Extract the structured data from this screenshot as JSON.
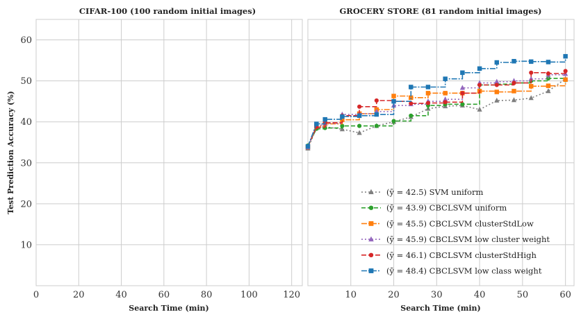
{
  "chart_data": [
    {
      "type": "line",
      "title": "CIFAR-100 (100 random initial images)",
      "xlabel": "Search Time (min)",
      "ylabel": "Test Prediction Accuracy (%)",
      "xlim": [
        0,
        125
      ],
      "ylim": [
        0,
        65
      ],
      "xticks": [
        0,
        20,
        40,
        60,
        80,
        100,
        120
      ],
      "yticks": [
        10,
        20,
        30,
        40,
        50,
        60
      ],
      "grid": true,
      "series": []
    },
    {
      "type": "line",
      "title": "GROCERY STORE (81 random initial images)",
      "xlabel": "Search Time (min)",
      "ylabel": "",
      "xlim": [
        0,
        62
      ],
      "ylim": [
        0,
        65
      ],
      "xticks": [
        10,
        20,
        30,
        40,
        50,
        60
      ],
      "yticks": [
        10,
        20,
        30,
        40,
        50,
        60
      ],
      "grid": true,
      "legend_position": "lower-right",
      "series": [
        {
          "name": "(ȳ = 42.5) SVM uniform",
          "color": "#7f7f7f",
          "dash": "2,3",
          "marker": "triangle",
          "step": false,
          "x": [
            0,
            2,
            4,
            8,
            12,
            16,
            20,
            24,
            28,
            32,
            36,
            40,
            44,
            48,
            52,
            56,
            60
          ],
          "y": [
            33.5,
            38.5,
            38.8,
            38.2,
            37.3,
            39.0,
            40.0,
            41.2,
            43.2,
            43.8,
            44.0,
            43.0,
            45.2,
            45.3,
            45.8,
            47.5,
            50.5
          ]
        },
        {
          "name": "(ȳ = 43.9) CBCLSVM uniform",
          "color": "#2ca02c",
          "dash": "6,3",
          "marker": "circle",
          "step": true,
          "x": [
            0,
            2,
            4,
            8,
            12,
            16,
            20,
            24,
            28,
            32,
            36,
            40,
            44,
            48,
            52,
            56,
            60
          ],
          "y": [
            34.2,
            38.3,
            38.5,
            39.0,
            39.0,
            39.0,
            40.2,
            41.5,
            44.0,
            44.3,
            44.3,
            49.0,
            49.2,
            49.5,
            50.0,
            50.6,
            50.2
          ]
        },
        {
          "name": "(ȳ = 45.5) CBCLSVM clusterStdLow",
          "color": "#ff7f0e",
          "dash": "8,2,2,2",
          "marker": "square",
          "step": true,
          "x": [
            0,
            2,
            4,
            8,
            12,
            16,
            20,
            24,
            28,
            32,
            36,
            40,
            44,
            48,
            52,
            56,
            60
          ],
          "y": [
            33.8,
            39.0,
            39.5,
            40.5,
            42.0,
            43.0,
            46.3,
            45.9,
            47.0,
            47.0,
            47.0,
            47.5,
            47.3,
            47.5,
            48.7,
            48.8,
            50.3
          ]
        },
        {
          "name": "(ȳ = 45.9) CBCLSVM low cluster weight",
          "color": "#9467bd",
          "dash": "2,3",
          "marker": "triangle",
          "step": true,
          "x": [
            0,
            2,
            4,
            8,
            12,
            16,
            20,
            24,
            28,
            32,
            36,
            40,
            44,
            48,
            52,
            56,
            60
          ],
          "y": [
            33.8,
            39.2,
            39.6,
            41.8,
            42.0,
            42.5,
            44.0,
            44.3,
            45.0,
            45.5,
            48.3,
            49.5,
            49.8,
            50.0,
            50.5,
            51.5,
            51.7
          ]
        },
        {
          "name": "(ȳ = 46.1) CBCLSVM clusterStdHigh",
          "color": "#d62728",
          "dash": "7,3",
          "marker": "circle",
          "step": true,
          "x": [
            0,
            2,
            4,
            8,
            12,
            16,
            20,
            24,
            28,
            32,
            36,
            40,
            44,
            48,
            52,
            56,
            60
          ],
          "y": [
            34.0,
            38.7,
            39.8,
            41.5,
            43.7,
            45.2,
            45.0,
            44.5,
            44.6,
            44.8,
            47.0,
            49.0,
            49.0,
            49.5,
            52.0,
            51.8,
            52.4
          ]
        },
        {
          "name": "(ȳ = 48.4) CBCLSVM low class weight",
          "color": "#1f77b4",
          "dash": "8,2,2,2",
          "marker": "square",
          "step": true,
          "x": [
            0,
            2,
            4,
            8,
            12,
            16,
            20,
            24,
            28,
            32,
            36,
            40,
            44,
            48,
            52,
            56,
            60
          ],
          "y": [
            34.0,
            39.5,
            40.6,
            41.3,
            41.5,
            41.8,
            45.0,
            48.5,
            48.5,
            50.5,
            52.0,
            53.0,
            54.5,
            54.8,
            54.7,
            54.6,
            56.0
          ]
        }
      ]
    }
  ]
}
